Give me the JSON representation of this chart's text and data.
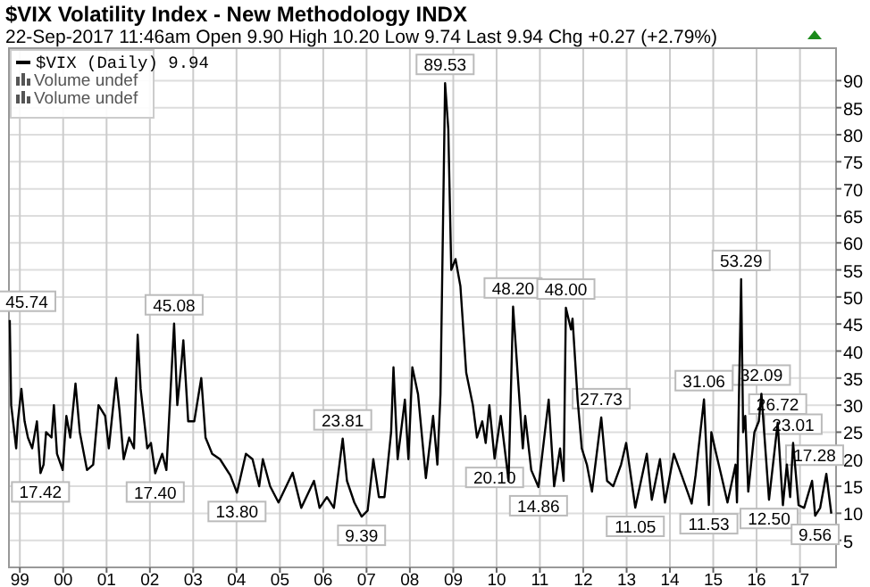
{
  "chart_data": {
    "type": "line",
    "title": "$VIX Volatility Index - New Methodology INDX",
    "subtitle": "22-Sep-2017 11:46am   Open 9.90  High 10.20  Low 9.74  Last 9.94  Chg +0.27 (+2.79%)",
    "x": [
      "1998-10-08",
      "1998-10-20",
      "1998-11-10",
      "1998-12-01",
      "1998-12-15",
      "1999-01-14",
      "1999-02-10",
      "1999-03-10",
      "1999-04-15",
      "1999-05-25",
      "1999-06-24",
      "1999-07-20",
      "1999-08-10",
      "1999-09-25",
      "1999-10-15",
      "1999-11-10",
      "1999-12-28",
      "2000-01-28",
      "2000-03-01",
      "2000-04-14",
      "2000-05-20",
      "2000-07-20",
      "2000-09-10",
      "2000-10-25",
      "2000-12-20",
      "2001-01-20",
      "2001-03-22",
      "2001-04-20",
      "2001-05-25",
      "2001-07-10",
      "2001-08-20",
      "2001-09-20",
      "2001-10-15",
      "2001-12-10",
      "2002-01-10",
      "2002-02-15",
      "2002-04-15",
      "2002-05-20",
      "2002-07-24",
      "2002-08-20",
      "2002-09-25",
      "2002-10-10",
      "2002-11-20",
      "2003-01-10",
      "2003-03-10",
      "2003-04-15",
      "2003-06-10",
      "2003-08-15",
      "2003-11-10",
      "2004-01-05",
      "2004-03-20",
      "2004-05-15",
      "2004-07-10",
      "2004-08-10",
      "2004-10-10",
      "2004-12-20",
      "2005-04-18",
      "2005-06-30",
      "2005-10-15",
      "2005-12-01",
      "2006-02-01",
      "2006-04-01",
      "2006-06-14",
      "2006-07-20",
      "2006-09-20",
      "2006-11-20",
      "2007-01-10",
      "2007-02-27",
      "2007-04-15",
      "2007-06-01",
      "2007-07-27",
      "2007-08-16",
      "2007-09-20",
      "2007-11-20",
      "2007-12-20",
      "2008-01-22",
      "2008-03-10",
      "2008-05-15",
      "2008-07-15",
      "2008-08-20",
      "2008-09-15",
      "2008-10-24",
      "2008-11-20",
      "2008-12-15",
      "2009-01-20",
      "2009-03-02",
      "2009-04-20",
      "2009-06-15",
      "2009-07-20",
      "2009-09-02",
      "2009-10-01",
      "2009-11-01",
      "2009-12-15",
      "2010-02-05",
      "2010-04-12",
      "2010-05-20",
      "2010-06-30",
      "2010-08-10",
      "2010-08-30",
      "2010-10-20",
      "2010-12-20",
      "2011-03-16",
      "2011-05-01",
      "2011-06-20",
      "2011-07-20",
      "2011-08-08",
      "2011-09-20",
      "2011-10-03",
      "2011-11-15",
      "2011-12-20",
      "2012-02-01",
      "2012-03-15",
      "2012-06-01",
      "2012-07-20",
      "2012-09-10",
      "2012-11-15",
      "2012-12-28",
      "2013-03-15",
      "2013-06-20",
      "2013-08-01",
      "2013-10-09",
      "2013-11-20",
      "2014-02-03",
      "2014-04-10",
      "2014-07-03",
      "2014-08-05",
      "2014-10-15",
      "2014-11-25",
      "2014-12-16",
      "2015-01-15",
      "2015-03-10",
      "2015-05-01",
      "2015-07-08",
      "2015-07-20",
      "2015-08-24",
      "2015-09-10",
      "2015-09-28",
      "2015-10-23",
      "2015-12-14",
      "2016-01-20",
      "2016-02-11",
      "2016-04-15",
      "2016-06-27",
      "2016-08-10",
      "2016-09-12",
      "2016-10-10",
      "2016-11-04",
      "2016-12-20",
      "2017-02-05",
      "2017-04-13",
      "2017-05-09",
      "2017-06-20",
      "2017-08-11",
      "2017-09-22"
    ],
    "series": [
      {
        "name": "$VIX (Daily) 9.94",
        "color": "#000000",
        "values": [
          45.74,
          30,
          26,
          22,
          27,
          33,
          27,
          24,
          22,
          27,
          17.42,
          19,
          25,
          24,
          30,
          21,
          18,
          28,
          24,
          34,
          25,
          18,
          19,
          30,
          28,
          22,
          35,
          29,
          20,
          24,
          22,
          43,
          33,
          22,
          23,
          17.4,
          21,
          18,
          45.08,
          30,
          38,
          42,
          27,
          27,
          35,
          24,
          21,
          20,
          17,
          13.8,
          21,
          20,
          15,
          20,
          15,
          12,
          17.5,
          11,
          16,
          11,
          13,
          11,
          23.81,
          16,
          12,
          9.39,
          10.5,
          20,
          13,
          13,
          25,
          37,
          20,
          31,
          20,
          37,
          32,
          16.5,
          28,
          19,
          32,
          89.53,
          81,
          55,
          57,
          52,
          36,
          30,
          24,
          27,
          23,
          30,
          20.1,
          28,
          16,
          48.2,
          35,
          22,
          28,
          18,
          14.86,
          31,
          15,
          22,
          16,
          48.0,
          44,
          46,
          31,
          22,
          19,
          14,
          27.73,
          16,
          15,
          19,
          23,
          11.05,
          21,
          12.5,
          20,
          12,
          21,
          17,
          11.8,
          17,
          31.06,
          11.53,
          25,
          22,
          17,
          12,
          19,
          12,
          53.29,
          25,
          28,
          14,
          25,
          27,
          32.09,
          12.5,
          26.72,
          11.5,
          19,
          13,
          23.01,
          11.5,
          11,
          16,
          9.56,
          11,
          17.28,
          9.94
        ]
      }
    ],
    "xlim": [
      "1998-10-01",
      "2017-11-01"
    ],
    "xticks": [
      {
        "value": "1999",
        "label": "99"
      },
      {
        "value": "2000",
        "label": "00"
      },
      {
        "value": "2001",
        "label": "01"
      },
      {
        "value": "2002",
        "label": "02"
      },
      {
        "value": "2003",
        "label": "03"
      },
      {
        "value": "2004",
        "label": "04"
      },
      {
        "value": "2005",
        "label": "05"
      },
      {
        "value": "2006",
        "label": "06"
      },
      {
        "value": "2007",
        "label": "07"
      },
      {
        "value": "2008",
        "label": "08"
      },
      {
        "value": "2009",
        "label": "09"
      },
      {
        "value": "2010",
        "label": "10"
      },
      {
        "value": "2011",
        "label": "11"
      },
      {
        "value": "2012",
        "label": "12"
      },
      {
        "value": "2013",
        "label": "13"
      },
      {
        "value": "2014",
        "label": "14"
      },
      {
        "value": "2015",
        "label": "15"
      },
      {
        "value": "2016",
        "label": "16"
      },
      {
        "value": "2017",
        "label": "17"
      }
    ],
    "ylim": [
      0,
      96
    ],
    "yticks": [
      5,
      10,
      15,
      20,
      25,
      30,
      35,
      40,
      45,
      50,
      55,
      60,
      65,
      70,
      75,
      80,
      85,
      90
    ],
    "grid": true,
    "legend": "top left",
    "marker": "none",
    "line_style": "solid",
    "annotations": [
      "Volume undef",
      "Volume undef",
      {
        "text": "45.74",
        "x": "1998-10-08",
        "y": 45.74
      },
      {
        "text": "17.42",
        "x": "1999-06-24",
        "y": 17.42
      },
      {
        "text": "45.08",
        "x": "2002-07-24",
        "y": 45.08
      },
      {
        "text": "17.40",
        "x": "2002-02-15",
        "y": 17.4
      },
      {
        "text": "13.80",
        "x": "2004-01-05",
        "y": 13.8
      },
      {
        "text": "23.81",
        "x": "2006-06-14",
        "y": 23.81
      },
      {
        "text": "9.39",
        "x": "2006-11-20",
        "y": 9.39
      },
      {
        "text": "89.53",
        "x": "2008-10-24",
        "y": 89.53
      },
      {
        "text": "20.10",
        "x": "2009-12-15",
        "y": 20.1
      },
      {
        "text": "48.20",
        "x": "2010-05-20",
        "y": 48.2
      },
      {
        "text": "14.86",
        "x": "2010-12-20",
        "y": 14.86
      },
      {
        "text": "48.00",
        "x": "2011-08-08",
        "y": 48.0
      },
      {
        "text": "27.73",
        "x": "2012-06-01",
        "y": 27.73
      },
      {
        "text": "11.05",
        "x": "2013-03-15",
        "y": 11.05
      },
      {
        "text": "31.06",
        "x": "2014-10-15",
        "y": 31.06
      },
      {
        "text": "11.53",
        "x": "2014-11-25",
        "y": 11.53
      },
      {
        "text": "53.29",
        "x": "2015-08-24",
        "y": 53.29
      },
      {
        "text": "32.09",
        "x": "2016-02-11",
        "y": 32.09
      },
      {
        "text": "12.50",
        "x": "2016-04-15",
        "y": 12.5
      },
      {
        "text": "26.72",
        "x": "2016-06-27",
        "y": 26.72
      },
      {
        "text": "23.01",
        "x": "2016-11-04",
        "y": 23.01
      },
      {
        "text": "9.56",
        "x": "2017-05-09",
        "y": 9.56
      },
      {
        "text": "17.28",
        "x": "2017-08-11",
        "y": 17.28
      }
    ]
  }
}
